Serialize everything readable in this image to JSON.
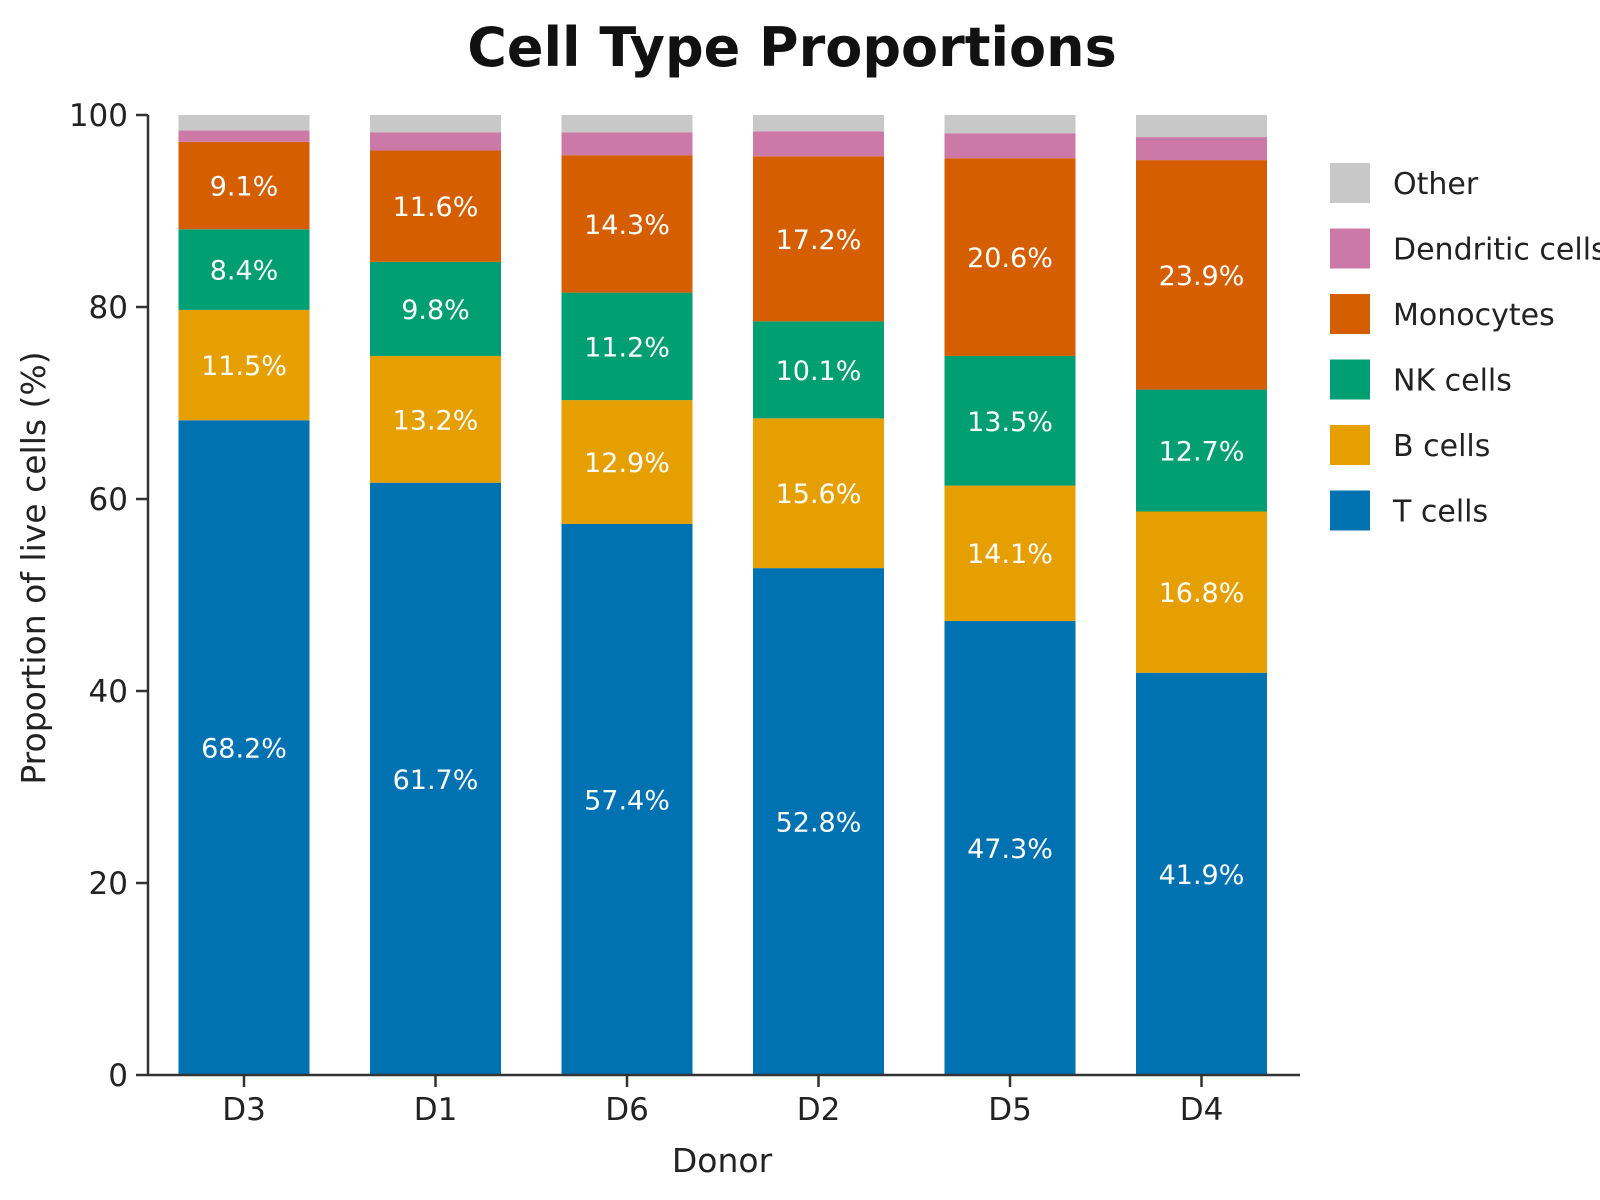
{
  "chart_data": {
    "type": "bar",
    "stacked": true,
    "title": "Cell Type Proportions",
    "xlabel": "Donor",
    "ylabel": "Proportion of live cells (%)",
    "ylim": [
      0,
      100
    ],
    "yticks": [
      "0",
      "20",
      "40",
      "60",
      "80",
      "100"
    ],
    "categories": [
      "D3",
      "D1",
      "D6",
      "D2",
      "D5",
      "D4"
    ],
    "grid": false,
    "legend_position": "right",
    "series": [
      {
        "name": "T cells",
        "color": "#0072B2",
        "values": [
          68.2,
          61.7,
          57.4,
          52.8,
          47.3,
          41.9
        ],
        "labels": [
          "68.2%",
          "61.7%",
          "57.4%",
          "52.8%",
          "47.3%",
          "41.9%"
        ]
      },
      {
        "name": "B cells",
        "color": "#E69F00",
        "values": [
          11.5,
          13.2,
          12.9,
          15.6,
          14.1,
          16.8
        ],
        "labels": [
          "11.5%",
          "13.2%",
          "12.9%",
          "15.6%",
          "14.1%",
          "16.8%"
        ]
      },
      {
        "name": "NK cells",
        "color": "#009E73",
        "values": [
          8.4,
          9.8,
          11.2,
          10.1,
          13.5,
          12.7
        ],
        "labels": [
          "8.4%",
          "9.8%",
          "11.2%",
          "10.1%",
          "13.5%",
          "12.7%"
        ]
      },
      {
        "name": "Monocytes",
        "color": "#D55E00",
        "values": [
          9.1,
          11.6,
          14.3,
          17.2,
          20.6,
          23.9
        ],
        "labels": [
          "9.1%",
          "11.6%",
          "14.3%",
          "17.2%",
          "20.6%",
          "23.9%"
        ]
      },
      {
        "name": "Dendritic cells",
        "color": "#CC79A7",
        "values": [
          1.2,
          1.9,
          2.4,
          2.6,
          2.6,
          2.4
        ],
        "labels": []
      },
      {
        "name": "Other",
        "color": "#C8C8C8",
        "values": [
          1.6,
          1.8,
          1.8,
          1.7,
          1.9,
          2.3
        ],
        "labels": []
      }
    ],
    "legend_order": [
      "Other",
      "Dendritic cells",
      "Monocytes",
      "NK cells",
      "B cells",
      "T cells"
    ]
  }
}
